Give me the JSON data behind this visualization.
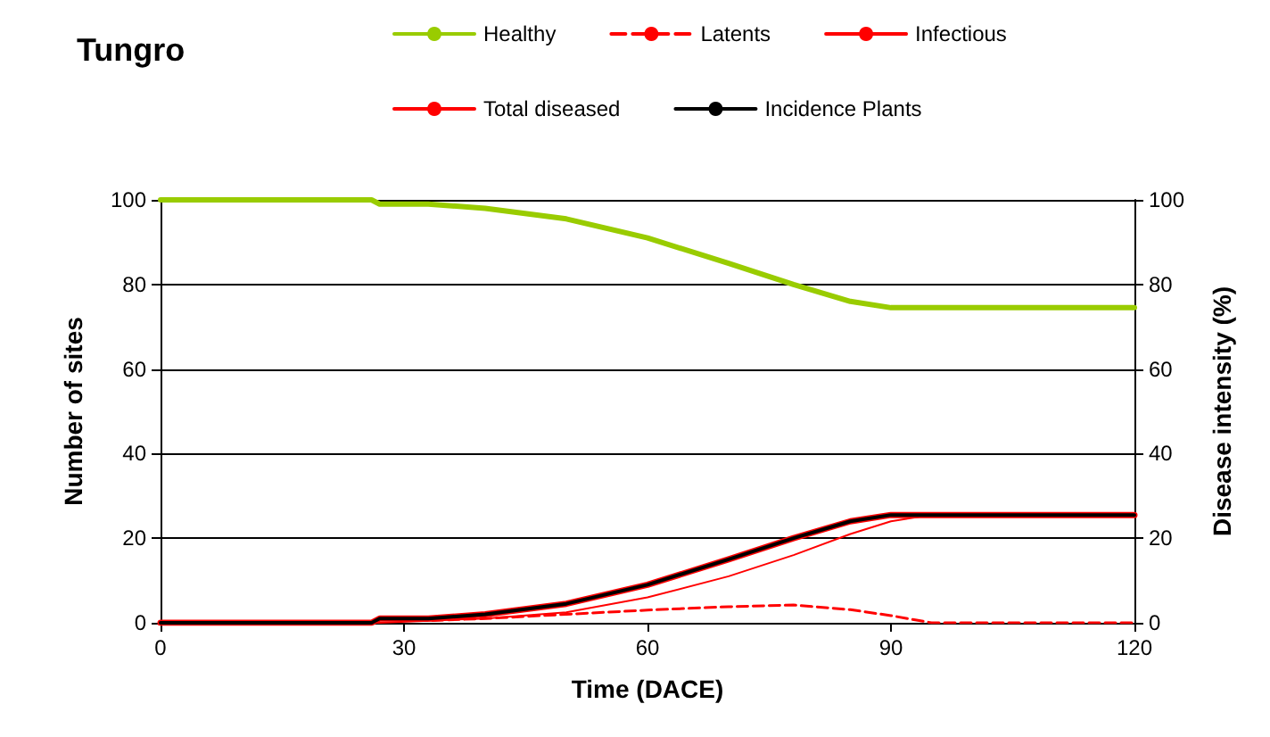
{
  "chart_data": {
    "type": "line",
    "title": "Tungro",
    "xlabel": "Time (DACE)",
    "ylabel": "Number of sites",
    "y2label": "Disease intensity (%)",
    "x": [
      0,
      26,
      27,
      33,
      40,
      50,
      60,
      70,
      78,
      85,
      90,
      95,
      120
    ],
    "series": [
      {
        "name": "Healthy",
        "color": "#99cc00",
        "values": [
          100,
          100,
          99,
          99,
          98,
          95.5,
          91,
          85,
          80,
          76,
          74.5,
          74.5,
          74.5
        ]
      },
      {
        "name": "Latents",
        "color": "#ff0000",
        "line_style": "dashed",
        "values": [
          0,
          0,
          1,
          0.5,
          1,
          2,
          3,
          3.8,
          4.2,
          3.1,
          1.7,
          0,
          0
        ]
      },
      {
        "name": "Infectious",
        "color": "#ff0000",
        "values": [
          0,
          0,
          0,
          0.5,
          1,
          2.5,
          6,
          11,
          16,
          21,
          24,
          25.5,
          25.5
        ]
      },
      {
        "name": "Total diseased",
        "color": "#ff0000",
        "values": [
          0,
          0,
          1,
          1,
          2,
          4.5,
          9,
          15,
          20,
          24,
          25.5,
          25.5,
          25.5
        ]
      },
      {
        "name": "Incidence Plants",
        "color": "#000000",
        "values": [
          0,
          0,
          1,
          1,
          2,
          4.5,
          9,
          15,
          20,
          24,
          25.5,
          25.5,
          25.5
        ]
      }
    ],
    "xlim": [
      0,
      120
    ],
    "xticks": [
      0,
      30,
      60,
      90,
      120
    ],
    "ylim": [
      0,
      100
    ],
    "yticks": [
      0,
      20,
      40,
      60,
      80,
      100
    ],
    "y2lim": [
      0,
      100
    ],
    "y2ticks": [
      0,
      20,
      40,
      60,
      80,
      100
    ],
    "grid": "y",
    "legend": "top",
    "marker": "none",
    "line_style": "solid"
  }
}
